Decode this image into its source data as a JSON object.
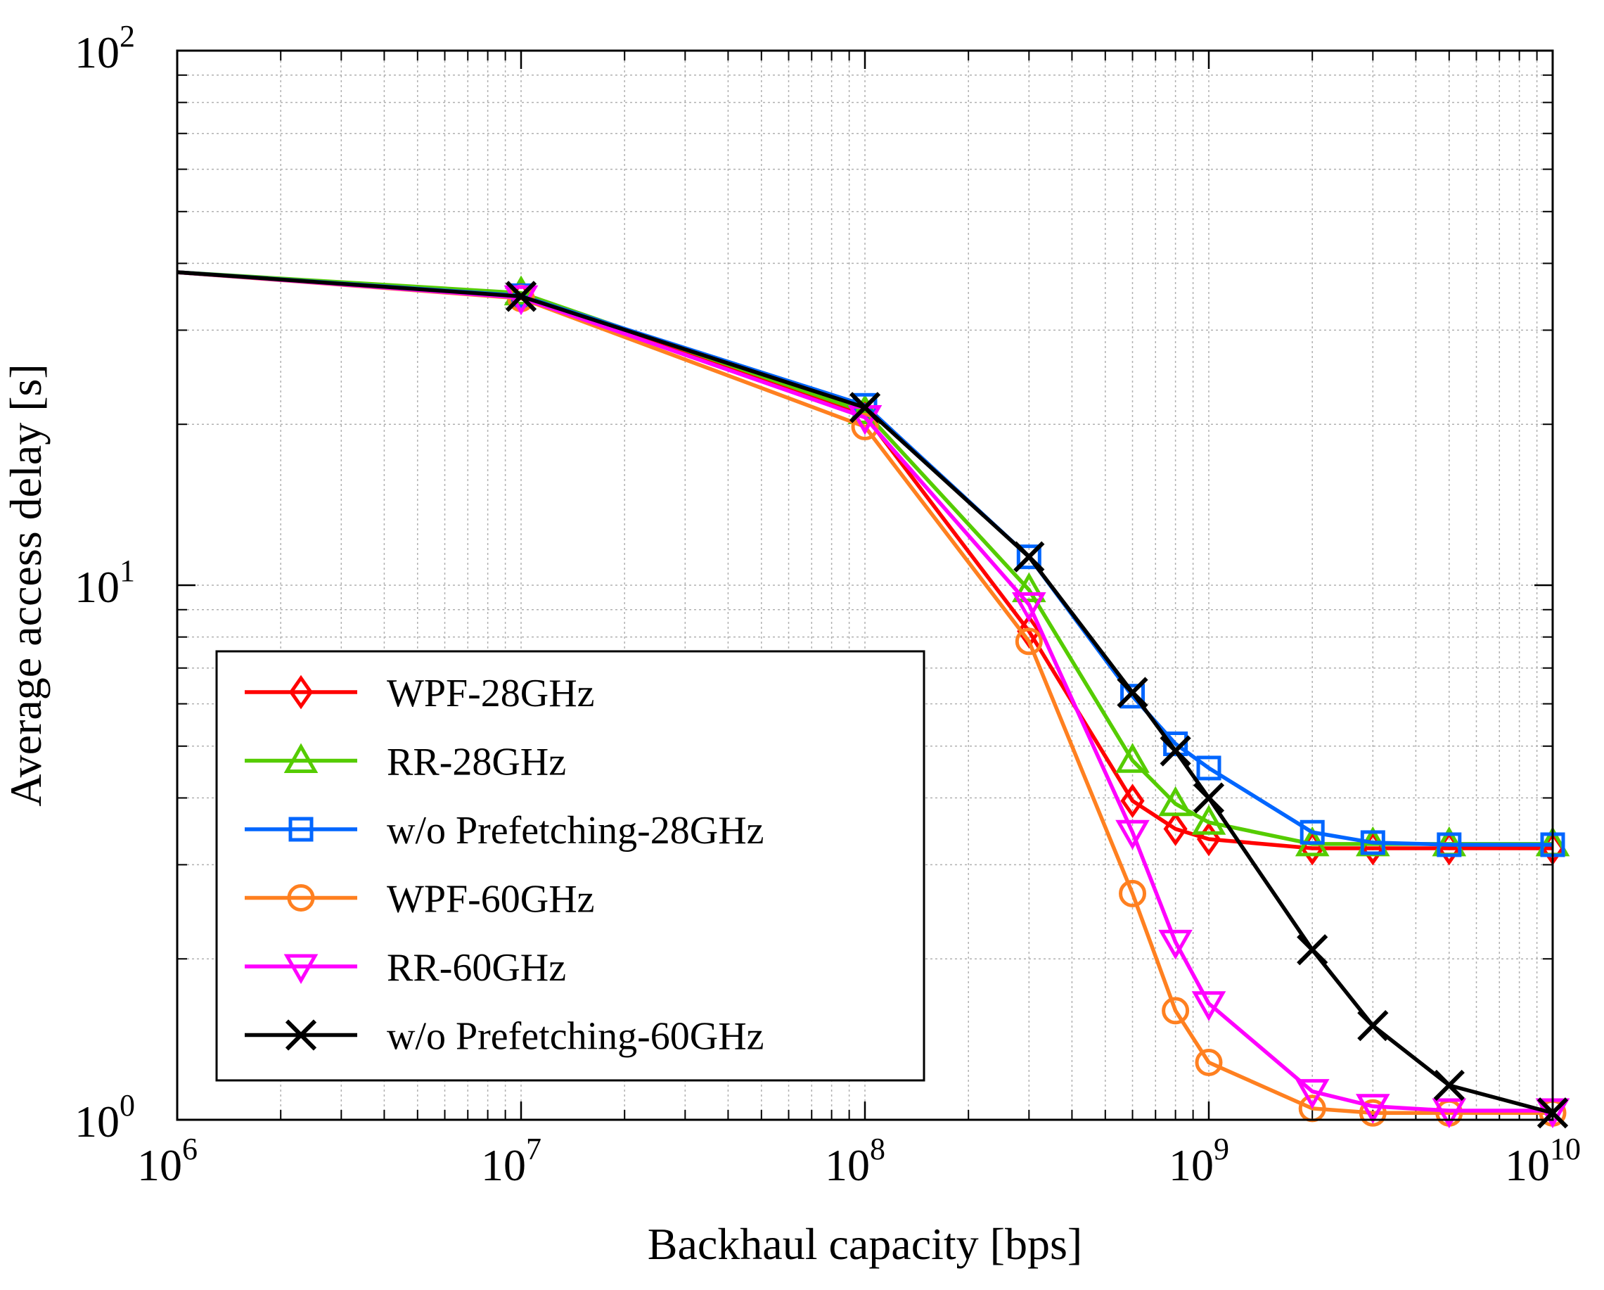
{
  "chart_data": {
    "type": "line",
    "xscale": "log",
    "yscale": "log",
    "xlabel": "Backhaul capacity [bps]",
    "ylabel": "Average access delay [s]",
    "xlim": [
      1000000,
      10000000000
    ],
    "ylim": [
      1,
      100
    ],
    "grid": true,
    "legend_position": "bottom-left",
    "x_ticks": [
      {
        "value": 1000000,
        "base": "10",
        "exp": "6"
      },
      {
        "value": 10000000,
        "base": "10",
        "exp": "7"
      },
      {
        "value": 100000000,
        "base": "10",
        "exp": "8"
      },
      {
        "value": 1000000000,
        "base": "10",
        "exp": "9"
      },
      {
        "value": 10000000000,
        "base": "10",
        "exp": "10"
      }
    ],
    "y_ticks": [
      {
        "value": 1,
        "base": "10",
        "exp": "0"
      },
      {
        "value": 10,
        "base": "10",
        "exp": "1"
      },
      {
        "value": 100,
        "base": "10",
        "exp": "2"
      }
    ],
    "series": [
      {
        "name": "WPF-28GHz",
        "color": "#ff0000",
        "marker": "diamond",
        "x": [
          1000000,
          10000000,
          100000000,
          300000000,
          600000000,
          800000000,
          1000000000,
          2000000000,
          3000000000,
          5000000000,
          10000000000
        ],
        "y": [
          38.5,
          34.6,
          20.8,
          8.2,
          3.95,
          3.5,
          3.35,
          3.22,
          3.22,
          3.22,
          3.22
        ],
        "marker_from": 1
      },
      {
        "name": "RR-28GHz",
        "color": "#55cc00",
        "marker": "triangle-up",
        "x": [
          1000000,
          10000000,
          100000000,
          300000000,
          600000000,
          800000000,
          1000000000,
          2000000000,
          3000000000,
          5000000000,
          10000000000
        ],
        "y": [
          38.5,
          35.2,
          21.1,
          9.8,
          4.7,
          3.9,
          3.6,
          3.28,
          3.28,
          3.28,
          3.28
        ],
        "marker_from": 1
      },
      {
        "name": "w/o Prefetching-28GHz",
        "color": "#0066ff",
        "marker": "square",
        "x": [
          1000000,
          10000000,
          100000000,
          300000000,
          600000000,
          800000000,
          1000000000,
          2000000000,
          3000000000,
          5000000000,
          10000000000
        ],
        "y": [
          38.5,
          34.8,
          21.7,
          11.3,
          6.2,
          5.05,
          4.55,
          3.45,
          3.3,
          3.27,
          3.27
        ],
        "marker_from": 1
      },
      {
        "name": "WPF-60GHz",
        "color": "#ff8020",
        "marker": "circle",
        "x": [
          1000000,
          10000000,
          100000000,
          300000000,
          600000000,
          800000000,
          1000000000,
          2000000000,
          3000000000,
          5000000000,
          10000000000
        ],
        "y": [
          38.5,
          34.4,
          19.8,
          7.85,
          2.65,
          1.6,
          1.28,
          1.05,
          1.03,
          1.03,
          1.03
        ],
        "marker_from": 1
      },
      {
        "name": "RR-60GHz",
        "color": "#ff00ff",
        "marker": "triangle-down",
        "x": [
          1000000,
          10000000,
          100000000,
          300000000,
          600000000,
          800000000,
          1000000000,
          2000000000,
          3000000000,
          5000000000,
          10000000000
        ],
        "y": [
          38.5,
          34.5,
          20.6,
          9.2,
          3.45,
          2.15,
          1.65,
          1.13,
          1.06,
          1.04,
          1.04
        ],
        "marker_from": 1
      },
      {
        "name": "w/o Prefetching-60GHz",
        "color": "#000000",
        "marker": "x",
        "x": [
          1000000,
          10000000,
          100000000,
          300000000,
          600000000,
          800000000,
          1000000000,
          2000000000,
          3000000000,
          5000000000,
          10000000000
        ],
        "y": [
          38.5,
          34.7,
          21.5,
          11.3,
          6.3,
          4.9,
          4.0,
          2.08,
          1.5,
          1.16,
          1.03
        ],
        "marker_from": 1
      }
    ]
  }
}
